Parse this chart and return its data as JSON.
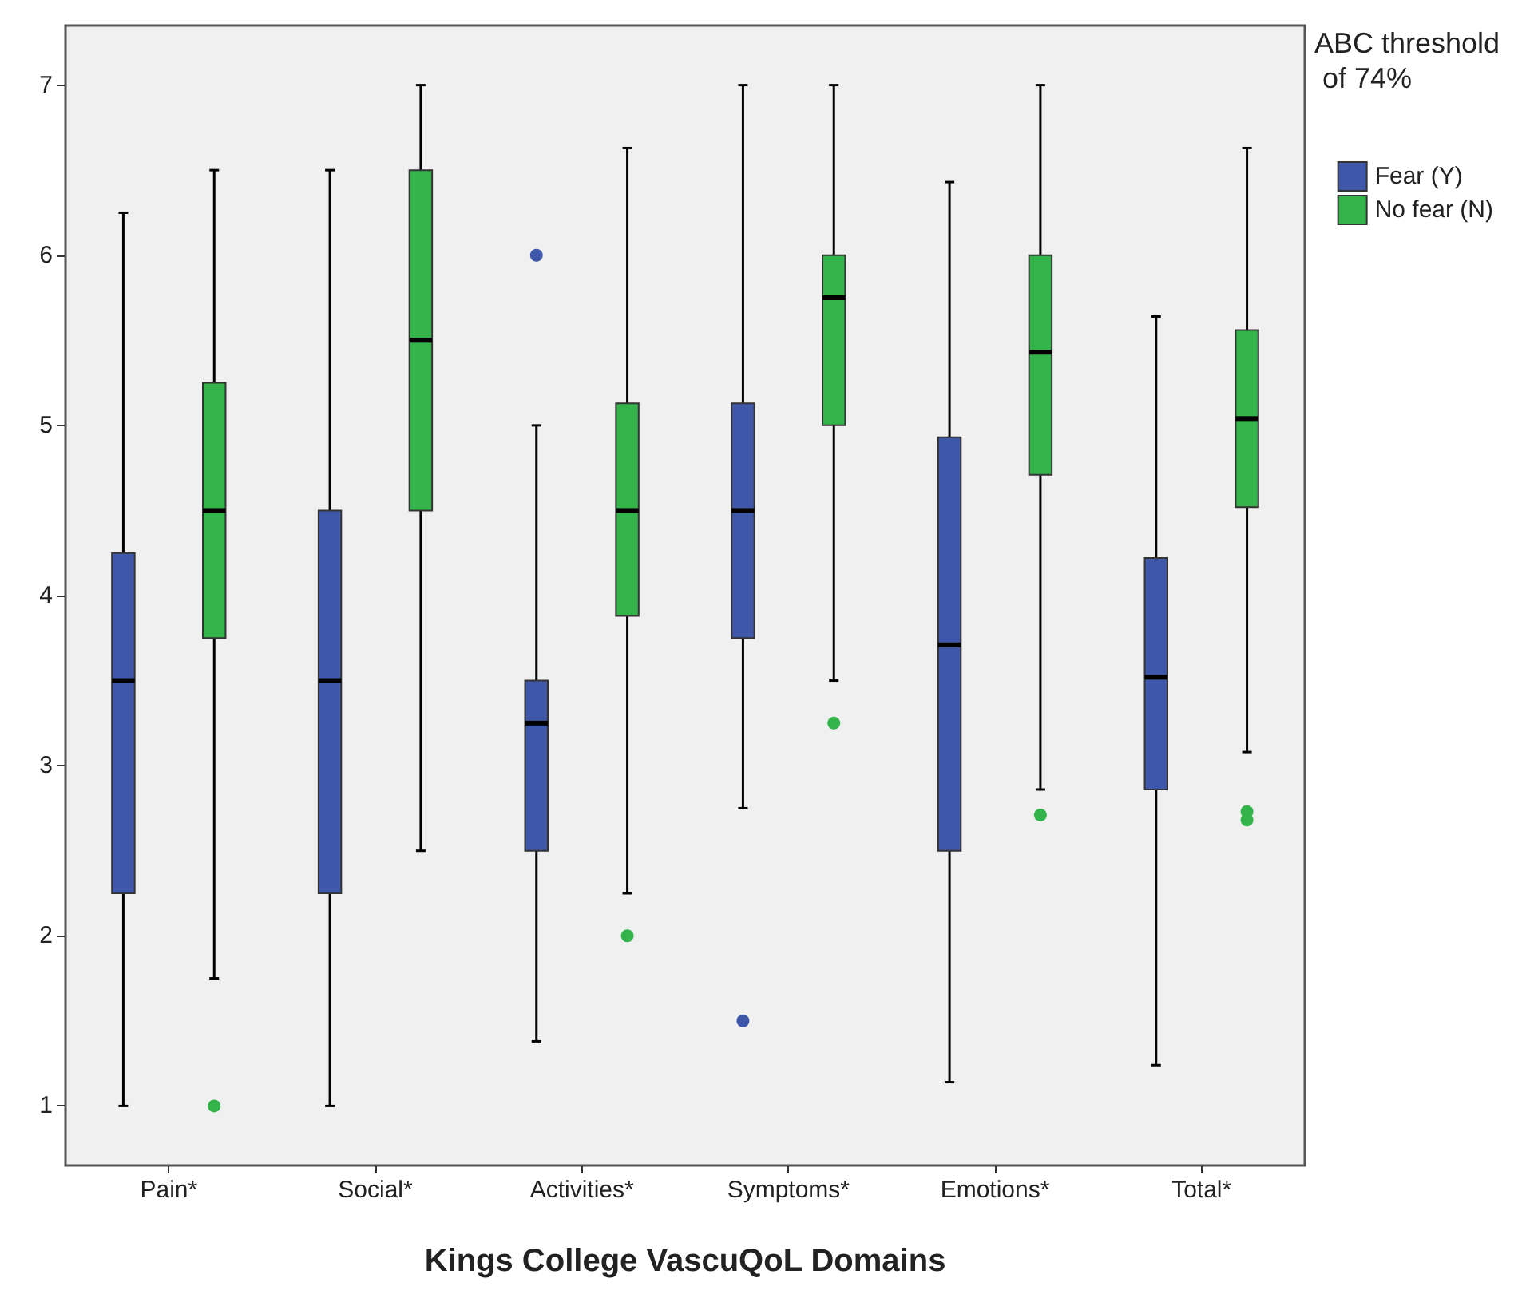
{
  "chart_data": {
    "type": "box",
    "xlabel": "Kings College VascuQoL Domains",
    "legend_title": "ABC threshold of 74%",
    "legend": "top right",
    "categories": [
      "Pain*",
      "Social*",
      "Activities*",
      "Symptoms*",
      "Emotions*",
      "Total*"
    ],
    "ylim": [
      0.65,
      7.35
    ],
    "yticks": [
      1,
      2,
      3,
      4,
      5,
      6,
      7
    ],
    "grid": false,
    "series": [
      {
        "name": "Fear (Y)",
        "color": "#3f57a8",
        "boxes": [
          {
            "low": 1,
            "q1": 2.25,
            "median": 3.5,
            "q3": 4.25,
            "high": 6.25
          },
          {
            "low": 1,
            "q1": 2.25,
            "median": 3.5,
            "q3": 4.5,
            "high": 6.5
          },
          {
            "low": 1.38,
            "q1": 2.5,
            "median": 3.25,
            "q3": 3.5,
            "high": 5,
            "outliers": [
              6
            ]
          },
          {
            "low": 2.75,
            "q1": 3.75,
            "median": 4.5,
            "q3": 5.13,
            "high": 7,
            "outliers": [
              1.5
            ]
          },
          {
            "low": 1.14,
            "q1": 2.5,
            "median": 3.71,
            "q3": 4.93,
            "high": 6.43
          },
          {
            "low": 1.24,
            "q1": 2.86,
            "median": 3.52,
            "q3": 4.22,
            "high": 5.64
          }
        ]
      },
      {
        "name": "No fear (N)",
        "color": "#33b44a",
        "boxes": [
          {
            "low": 1.75,
            "q1": 3.75,
            "median": 4.5,
            "q3": 5.25,
            "high": 6.5,
            "outliers": [
              1
            ]
          },
          {
            "low": 2.5,
            "q1": 4.5,
            "median": 5.5,
            "q3": 6.5,
            "high": 7
          },
          {
            "low": 2.25,
            "q1": 3.88,
            "median": 4.5,
            "q3": 5.13,
            "high": 6.63,
            "outliers": [
              2
            ]
          },
          {
            "low": 3.5,
            "q1": 5,
            "median": 5.75,
            "q3": 6,
            "high": 7,
            "outliers": [
              3.25
            ]
          },
          {
            "low": 2.86,
            "q1": 4.71,
            "median": 5.43,
            "q3": 6,
            "high": 7,
            "outliers": [
              2.71
            ]
          },
          {
            "low": 3.08,
            "q1": 4.52,
            "median": 5.04,
            "q3": 5.56,
            "high": 6.63,
            "outliers": [
              2.73,
              2.68
            ]
          }
        ]
      }
    ]
  }
}
